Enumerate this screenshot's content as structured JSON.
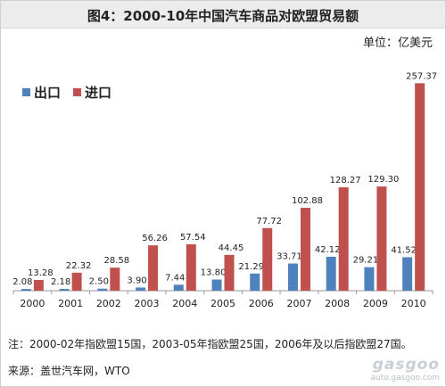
{
  "header": {
    "title": "图4：2000-10年中国汽车商品对欧盟贸易额",
    "unit": "单位：亿美元"
  },
  "legend": {
    "export_label": "出口",
    "import_label": "进口"
  },
  "colors": {
    "export": "#4f81bd",
    "import": "#c0504d",
    "title_bar": "#ececec"
  },
  "chart_data": {
    "type": "bar",
    "categories": [
      "2000",
      "2001",
      "2002",
      "2003",
      "2004",
      "2005",
      "2006",
      "2007",
      "2008",
      "2009",
      "2010"
    ],
    "series": [
      {
        "name": "出口",
        "values": [
          2.08,
          2.18,
          2.5,
          3.9,
          7.44,
          13.8,
          21.29,
          33.71,
          42.12,
          29.21,
          41.52
        ]
      },
      {
        "name": "进口",
        "values": [
          13.28,
          22.32,
          28.58,
          56.26,
          57.54,
          44.45,
          77.72,
          102.88,
          128.27,
          129.3,
          257.37
        ]
      }
    ],
    "ylim": [
      0,
      260
    ],
    "legend_position": "top-left"
  },
  "footer": {
    "note": "注：2000-02年指欧盟15国，2003-05年指欧盟25国，2006年及以后指欧盟27国。",
    "source": "来源：盖世汽车网，WTO"
  },
  "watermark": {
    "logo": "gasgoo",
    "url": "auto.gasgoo.com"
  }
}
